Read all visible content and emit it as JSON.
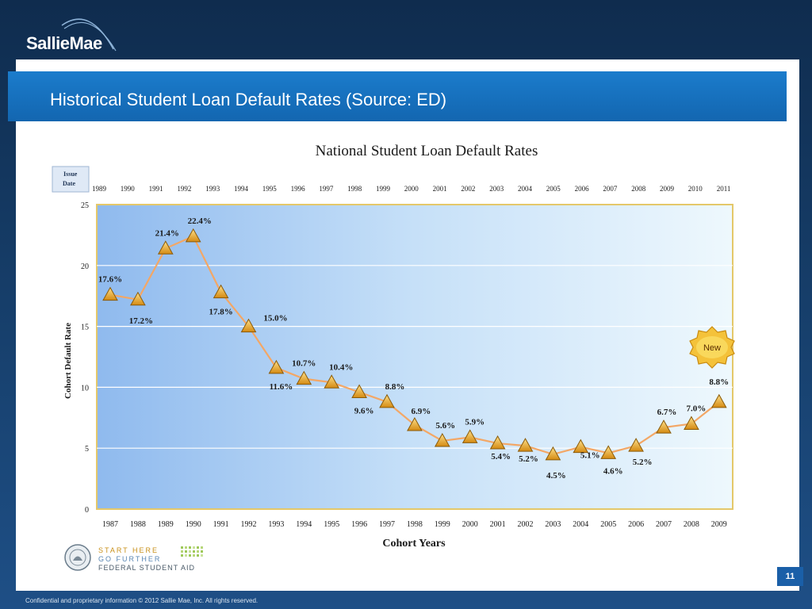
{
  "brand": {
    "name": "SallieMae"
  },
  "slide": {
    "title": "Historical Student Loan Default Rates (Source: ED)",
    "footer": "Confidential and proprietary information © 2012 Sallie Mae, Inc. All rights reserved.",
    "page_number": "11"
  },
  "fsa_logo": {
    "line1": "START HERE",
    "line2": "GO FURTHER",
    "line3": "FEDERAL STUDENT AID"
  },
  "colors": {
    "title_bar": "#1670c0",
    "line": "#f2a05a",
    "marker": "#e8a21f",
    "plot_bg_left": "#9cc4f0",
    "plot_bg_right": "#eaf5fd",
    "plot_border": "#e7c86b"
  },
  "chart_data": {
    "type": "line",
    "title": "National Student Loan Default Rates",
    "xlabel": "Cohort Years",
    "ylabel": "Cohort Default Rate",
    "ylim": [
      0,
      25
    ],
    "yticks": [
      0,
      5,
      10,
      15,
      20,
      25
    ],
    "grid": true,
    "issue_date_label": "Issue Date",
    "issue_dates": [
      "1989",
      "1990",
      "1991",
      "1992",
      "1993",
      "1994",
      "1995",
      "1996",
      "1997",
      "1998",
      "1999",
      "2000",
      "2001",
      "2002",
      "2003",
      "2004",
      "2005",
      "2006",
      "2007",
      "2008",
      "2009",
      "2010",
      "2011"
    ],
    "categories": [
      "1987",
      "1988",
      "1989",
      "1990",
      "1991",
      "1992",
      "1993",
      "1994",
      "1995",
      "1996",
      "1997",
      "1998",
      "1999",
      "2000",
      "2001",
      "2002",
      "2003",
      "2004",
      "2005",
      "2006",
      "2007",
      "2008",
      "2009"
    ],
    "series": [
      {
        "values": [
          17.6,
          17.2,
          21.4,
          22.4,
          17.8,
          15.0,
          11.6,
          10.7,
          10.4,
          9.6,
          8.8,
          6.9,
          5.6,
          5.9,
          5.4,
          5.2,
          4.5,
          5.1,
          4.6,
          5.2,
          6.7,
          7.0,
          8.8
        ],
        "labels": [
          "17.6%",
          "17.2%",
          "21.4%",
          "22.4%",
          "17.8%",
          "15.0%",
          "11.6%",
          "10.7%",
          "10.4%",
          "9.6%",
          "8.8%",
          "6.9%",
          "5.6%",
          "5.9%",
          "5.4%",
          "5.2%",
          "4.5%",
          "5.1%",
          "4.6%",
          "5.2%",
          "6.7%",
          "7.0%",
          "8.8%"
        ]
      }
    ],
    "annotation": "New"
  }
}
